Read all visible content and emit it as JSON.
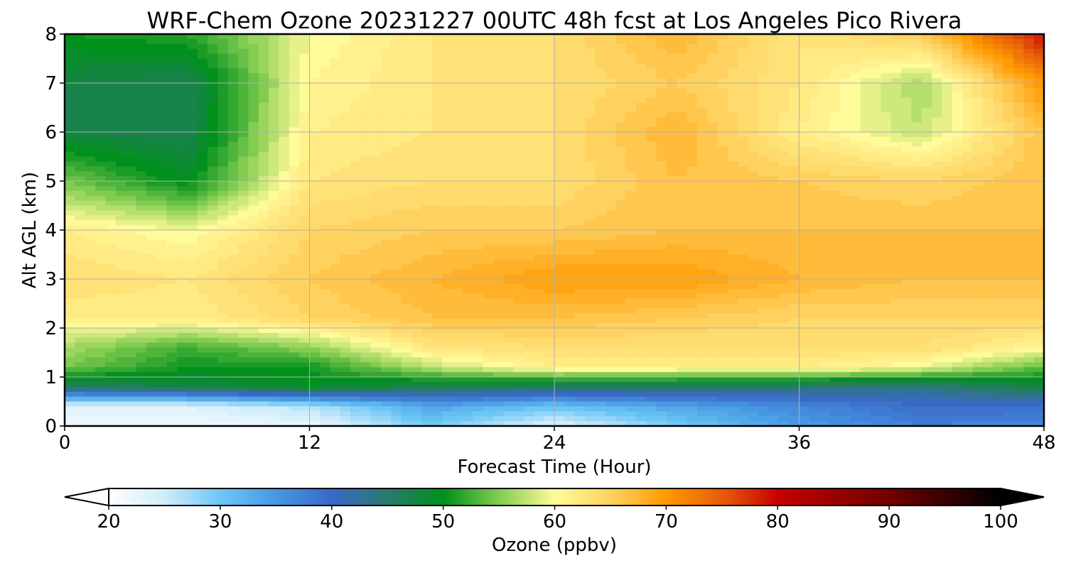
{
  "chart_data": {
    "type": "heatmap",
    "title": "WRF-Chem Ozone  20231227 00UTC 48h fcst at Los Angeles Pico Rivera",
    "xlabel": "Forecast Time (Hour)",
    "ylabel": "Alt AGL (km)",
    "xlim": [
      0,
      48
    ],
    "ylim": [
      0,
      8
    ],
    "xticks": [
      "0",
      "12",
      "24",
      "36",
      "48"
    ],
    "yticks": [
      "0",
      "1",
      "2",
      "3",
      "4",
      "5",
      "6",
      "7",
      "8"
    ],
    "grid": true,
    "x": [
      0,
      6,
      12,
      18,
      24,
      30,
      36,
      42,
      48
    ],
    "y": [
      0,
      0.4,
      0.8,
      1.2,
      1.6,
      2.2,
      3,
      4,
      5,
      6,
      7,
      8
    ],
    "z": [
      [
        22,
        22,
        23,
        30,
        24,
        30,
        35,
        38,
        37
      ],
      [
        24,
        24,
        27,
        34,
        31,
        34,
        37,
        40,
        40
      ],
      [
        46,
        48,
        50,
        47,
        46,
        46,
        45,
        44,
        48
      ],
      [
        55,
        51,
        51,
        58,
        62,
        62,
        62,
        60,
        54
      ],
      [
        57,
        53,
        56,
        63,
        64,
        64,
        64,
        64,
        61
      ],
      [
        62,
        62,
        65,
        67,
        67,
        66,
        65,
        65,
        65
      ],
      [
        64,
        63,
        66,
        68,
        70,
        70,
        68,
        67,
        67
      ],
      [
        62,
        60,
        65,
        66,
        66,
        67,
        67,
        67,
        67
      ],
      [
        55,
        50,
        63,
        64,
        64,
        67,
        66,
        65,
        67
      ],
      [
        48,
        47,
        62,
        63,
        64,
        68,
        62,
        58,
        67
      ],
      [
        48,
        47,
        61,
        63,
        64,
        66,
        63,
        57,
        71
      ],
      [
        51,
        52,
        60,
        63,
        64,
        68,
        63,
        66,
        80
      ]
    ],
    "colorbar": {
      "label": "Ozone  (ppbv)",
      "min": 20,
      "max": 100,
      "ticks": [
        "20",
        "30",
        "40",
        "50",
        "60",
        "70",
        "80",
        "90",
        "100"
      ],
      "extend": "both",
      "stops": [
        {
          "v": 20,
          "c": "#ffffff"
        },
        {
          "v": 25,
          "c": "#d0ecfa"
        },
        {
          "v": 30,
          "c": "#6ec6f5"
        },
        {
          "v": 35,
          "c": "#4798e2"
        },
        {
          "v": 40,
          "c": "#3a68c8"
        },
        {
          "v": 45,
          "c": "#2a7a6c"
        },
        {
          "v": 50,
          "c": "#00901c"
        },
        {
          "v": 55,
          "c": "#82cc50"
        },
        {
          "v": 60,
          "c": "#fffa9a"
        },
        {
          "v": 65,
          "c": "#ffd260"
        },
        {
          "v": 70,
          "c": "#ff9a00"
        },
        {
          "v": 75,
          "c": "#e65c0a"
        },
        {
          "v": 80,
          "c": "#c80000"
        },
        {
          "v": 90,
          "c": "#700000"
        },
        {
          "v": 100,
          "c": "#000000"
        }
      ]
    }
  }
}
